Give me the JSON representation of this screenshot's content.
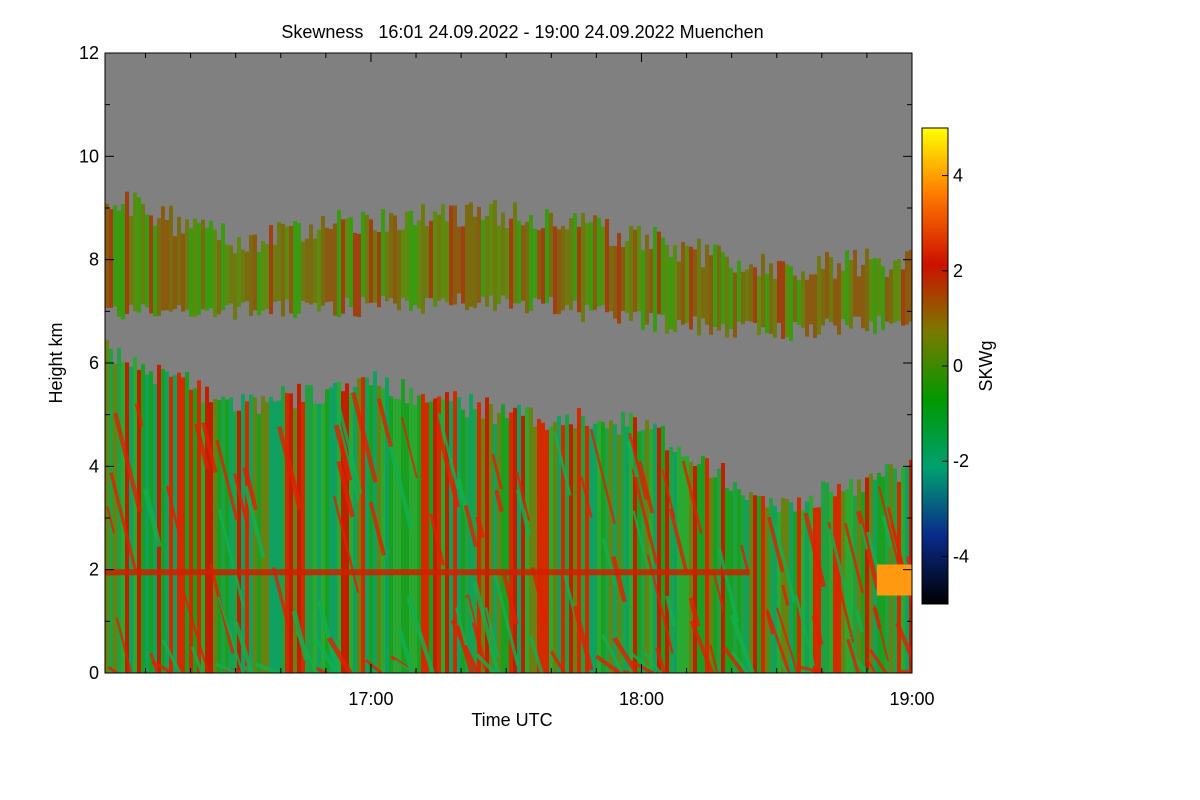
{
  "chart_data": {
    "type": "heatmap",
    "title": "Skewness   16:01 24.09.2022 - 19:00 24.09.2022 Muenchen",
    "xlabel": "Time UTC",
    "ylabel": "Height km",
    "colorbar_label": "SKWg",
    "x_range_hours_utc": [
      16.017,
      19.0
    ],
    "ylim": [
      0,
      12
    ],
    "x_ticks": [
      {
        "value": 17.0,
        "label": "17:00"
      },
      {
        "value": 18.0,
        "label": "18:00"
      },
      {
        "value": 19.0,
        "label": "19:00"
      }
    ],
    "y_ticks": [
      0,
      2,
      4,
      6,
      8,
      10,
      12
    ],
    "colorbar_range": [
      -5,
      5
    ],
    "colorbar_ticks": [
      -4,
      -2,
      0,
      2,
      4
    ],
    "colorbar_stops": [
      "#000000",
      "#0a2a8a",
      "#00a070",
      "#009900",
      "#7a7a00",
      "#cc1100",
      "#ff7700",
      "#ffff00"
    ],
    "no_data_color": "#808080",
    "layers": [
      {
        "name": "upper cloud layer",
        "bottom_km": [
          7.0,
          7.0,
          7.1,
          7.2,
          6.8,
          6.6,
          6.8
        ],
        "top_km": [
          9.2,
          8.3,
          8.8,
          8.9,
          8.4,
          7.8,
          8.0
        ],
        "dominant": "olive"
      },
      {
        "name": "lower cloud layer",
        "bottom_km": [
          0,
          0,
          0,
          0,
          0,
          0,
          0
        ],
        "top_km": [
          6.2,
          5.2,
          5.6,
          5.0,
          4.8,
          3.2,
          4.0
        ],
        "dominant": "green/red"
      },
      {
        "name": "boundary layer top",
        "height_km": 1.95,
        "dominant": "red"
      }
    ]
  }
}
